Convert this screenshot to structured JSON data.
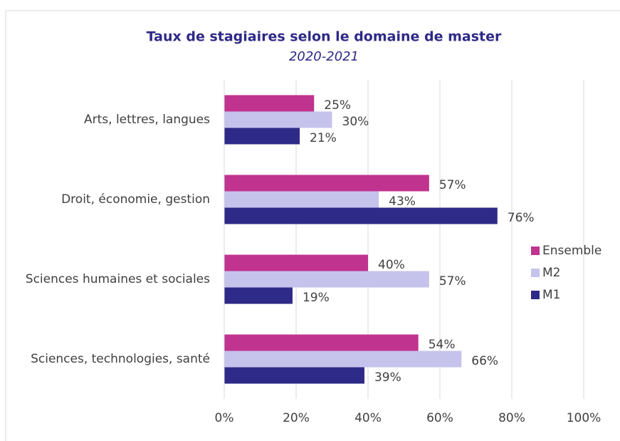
{
  "chart_data": {
    "type": "hbar",
    "title": "Taux de stagiaires selon le domaine de master",
    "subtitle": "2020-2021",
    "categories": [
      "Arts, lettres, langues",
      "Droit, économie, gestion",
      "Sciences humaines et sociales",
      "Sciences, technologies, santé"
    ],
    "series": [
      {
        "name": "Ensemble",
        "color": "#c0338f",
        "values": [
          25,
          57,
          40,
          54
        ],
        "value_labels": [
          "25%",
          "57%",
          "40%",
          "54%"
        ]
      },
      {
        "name": "M2",
        "color": "#c5c3ec",
        "values": [
          30,
          43,
          57,
          66
        ],
        "value_labels": [
          "30%",
          "43%",
          "57%",
          "66%"
        ]
      },
      {
        "name": "M1",
        "color": "#2e2a87",
        "values": [
          21,
          76,
          19,
          39
        ],
        "value_labels": [
          "21%",
          "76%",
          "19%",
          "39%"
        ]
      }
    ],
    "xlim": [
      0,
      100
    ],
    "xticks": [
      {
        "value": 0,
        "label": "0%"
      },
      {
        "value": 20,
        "label": "20%"
      },
      {
        "value": 40,
        "label": "40%"
      },
      {
        "value": 60,
        "label": "60%"
      },
      {
        "value": 80,
        "label": "80%"
      },
      {
        "value": 100,
        "label": "100%"
      }
    ],
    "grid": true,
    "legend": "right"
  }
}
